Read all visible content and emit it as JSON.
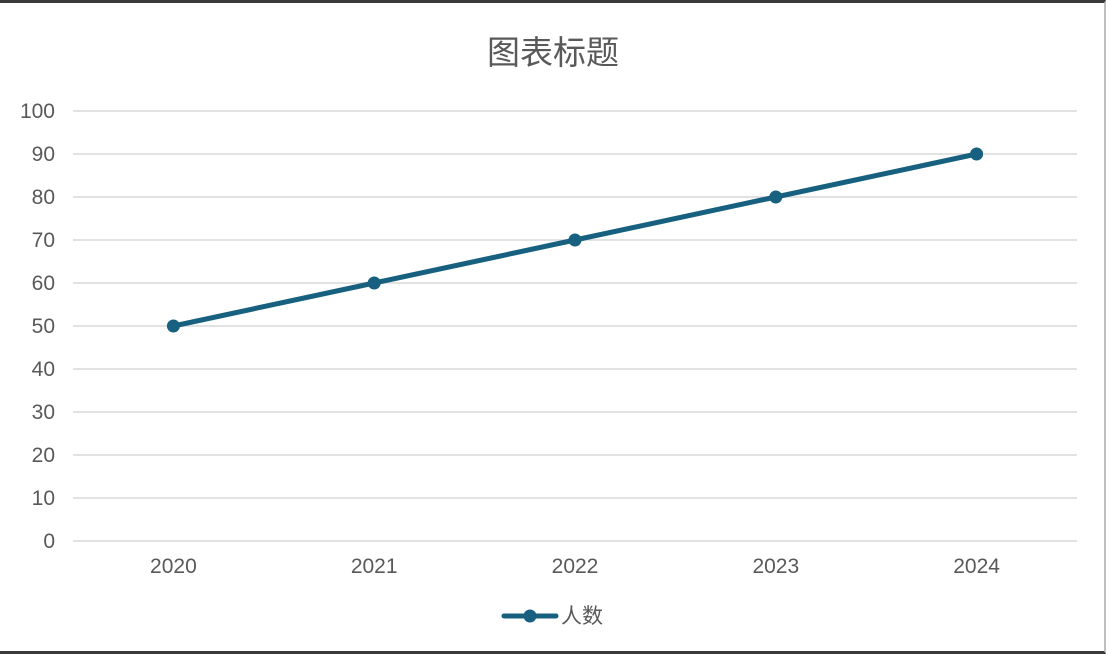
{
  "chart_data": {
    "type": "line",
    "title": "图表标题",
    "categories": [
      "2020",
      "2021",
      "2022",
      "2023",
      "2024"
    ],
    "series": [
      {
        "name": "人数",
        "values": [
          50,
          60,
          70,
          80,
          90
        ],
        "color": "#17607f"
      }
    ],
    "ylim": [
      0,
      100
    ],
    "yticks": [
      0,
      10,
      20,
      30,
      40,
      50,
      60,
      70,
      80,
      90,
      100
    ],
    "grid": true,
    "legend_position": "bottom",
    "colors": {
      "gridline": "#d9d9d9",
      "text": "#595959"
    }
  }
}
